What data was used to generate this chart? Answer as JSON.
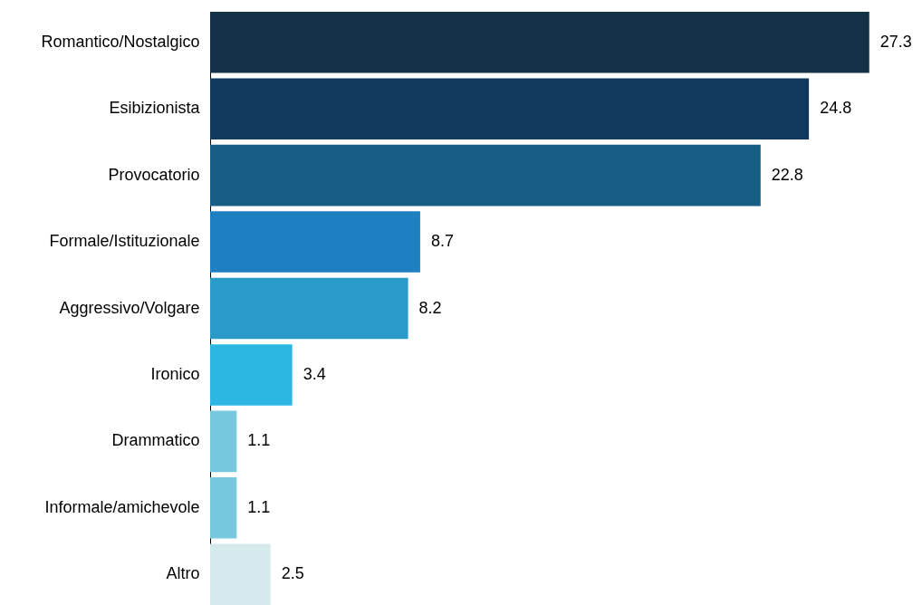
{
  "chart_data": {
    "type": "bar",
    "orientation": "horizontal",
    "data_labels": true,
    "categories": [
      "Romantico/Nostalgico",
      "Esibizionista",
      "Provocatorio",
      "Formale/Istituzionale",
      "Aggressivo/Volgare",
      "Ironico",
      "Drammatico",
      "Informale/amichevole",
      "Altro"
    ],
    "values": [
      27.3,
      24.8,
      22.8,
      8.7,
      8.2,
      3.4,
      1.1,
      1.1,
      2.5
    ],
    "colors": [
      "#133247",
      "#0f3a5e",
      "#175e84",
      "#1e80c1",
      "#2a9ac9",
      "#2cb7e3",
      "#77c8df",
      "#77c8df",
      "#d6eaee"
    ]
  }
}
